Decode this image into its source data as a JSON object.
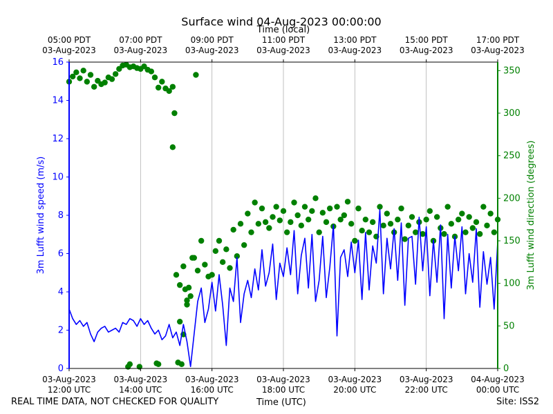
{
  "title": "Surface wind 04-Aug-2023 00:00:00",
  "footer": {
    "left": "REAL TIME DATA, NOT CHECKED FOR QUALITY",
    "center": "Time (UTC)",
    "right": "Site: ISS2"
  },
  "colors": {
    "speed": "#0000ff",
    "direction": "#008000",
    "grid": "#b0b0b0",
    "axis": "#000000"
  },
  "chart_data": {
    "type": "line",
    "title": "Surface wind 04-Aug-2023 00:00:00",
    "x_range_utc_hours": [
      12,
      24
    ],
    "bottom_axis": {
      "label": "Time (UTC)",
      "ticks": [
        {
          "hour": 12,
          "l1": "03-Aug-2023",
          "l2": "12:00 UTC"
        },
        {
          "hour": 14,
          "l1": "03-Aug-2023",
          "l2": "14:00 UTC"
        },
        {
          "hour": 16,
          "l1": "03-Aug-2023",
          "l2": "16:00 UTC"
        },
        {
          "hour": 18,
          "l1": "03-Aug-2023",
          "l2": "18:00 UTC"
        },
        {
          "hour": 20,
          "l1": "03-Aug-2023",
          "l2": "20:00 UTC"
        },
        {
          "hour": 22,
          "l1": "03-Aug-2023",
          "l2": "22:00 UTC"
        },
        {
          "hour": 24,
          "l1": "04-Aug-2023",
          "l2": "00:00 UTC"
        }
      ]
    },
    "top_axis": {
      "label": "Time (local)",
      "ticks": [
        {
          "hour": 12,
          "l1": "05:00 PDT",
          "l2": "03-Aug-2023"
        },
        {
          "hour": 14,
          "l1": "07:00 PDT",
          "l2": "03-Aug-2023"
        },
        {
          "hour": 16,
          "l1": "09:00 PDT",
          "l2": "03-Aug-2023"
        },
        {
          "hour": 18,
          "l1": "11:00 PDT",
          "l2": "03-Aug-2023"
        },
        {
          "hour": 20,
          "l1": "13:00 PDT",
          "l2": "03-Aug-2023"
        },
        {
          "hour": 22,
          "l1": "15:00 PDT",
          "l2": "03-Aug-2023"
        },
        {
          "hour": 24,
          "l1": "17:00 PDT",
          "l2": "03-Aug-2023"
        }
      ]
    },
    "left_axis": {
      "label": "3m Lufft wind speed (m/s)",
      "ylim": [
        0,
        16
      ],
      "ticks": [
        0,
        2,
        4,
        6,
        8,
        10,
        12,
        14,
        16
      ]
    },
    "right_axis": {
      "label": "3m Lufft wind direction (degrees)",
      "ylim": [
        0,
        360
      ],
      "ticks": [
        0,
        50,
        100,
        150,
        200,
        250,
        300,
        350
      ]
    },
    "series": [
      {
        "name": "3m Lufft wind speed (m/s)",
        "axis": "left",
        "style": "line",
        "x_hours": [
          12.0,
          12.1,
          12.2,
          12.3,
          12.4,
          12.5,
          12.6,
          12.7,
          12.8,
          12.9,
          13.0,
          13.1,
          13.2,
          13.3,
          13.4,
          13.5,
          13.6,
          13.7,
          13.8,
          13.9,
          14.0,
          14.1,
          14.2,
          14.3,
          14.4,
          14.5,
          14.6,
          14.7,
          14.8,
          14.9,
          15.0,
          15.1,
          15.2,
          15.3,
          15.4,
          15.5,
          15.6,
          15.7,
          15.8,
          15.9,
          16.0,
          16.1,
          16.2,
          16.3,
          16.4,
          16.5,
          16.6,
          16.7,
          16.8,
          16.9,
          17.0,
          17.1,
          17.2,
          17.3,
          17.4,
          17.5,
          17.6,
          17.7,
          17.8,
          17.9,
          18.0,
          18.1,
          18.2,
          18.3,
          18.4,
          18.5,
          18.6,
          18.7,
          18.8,
          18.9,
          19.0,
          19.1,
          19.2,
          19.3,
          19.4,
          19.5,
          19.6,
          19.7,
          19.8,
          19.9,
          20.0,
          20.1,
          20.2,
          20.3,
          20.4,
          20.5,
          20.6,
          20.7,
          20.8,
          20.9,
          21.0,
          21.1,
          21.2,
          21.3,
          21.4,
          21.5,
          21.6,
          21.7,
          21.8,
          21.9,
          22.0,
          22.1,
          22.2,
          22.3,
          22.4,
          22.5,
          22.6,
          22.7,
          22.8,
          22.9,
          23.0,
          23.1,
          23.2,
          23.3,
          23.4,
          23.5,
          23.6,
          23.7,
          23.8,
          23.9,
          24.0
        ],
        "values": [
          3.1,
          2.6,
          2.3,
          2.5,
          2.2,
          2.4,
          1.8,
          1.4,
          1.9,
          2.1,
          2.2,
          1.9,
          2.0,
          2.1,
          1.9,
          2.4,
          2.3,
          2.6,
          2.5,
          2.2,
          2.6,
          2.3,
          2.5,
          2.1,
          1.8,
          2.0,
          1.5,
          1.7,
          2.3,
          1.6,
          1.9,
          1.2,
          2.3,
          1.4,
          0.1,
          1.8,
          3.5,
          4.2,
          2.4,
          3.1,
          4.5,
          3.0,
          4.9,
          3.3,
          1.2,
          4.2,
          3.5,
          5.8,
          2.4,
          3.9,
          4.6,
          3.7,
          5.2,
          4.1,
          6.2,
          4.3,
          5.0,
          6.5,
          3.6,
          5.5,
          4.8,
          6.3,
          4.9,
          7.2,
          3.9,
          5.9,
          6.8,
          4.2,
          7.0,
          3.5,
          4.6,
          6.9,
          3.7,
          5.3,
          7.5,
          1.7,
          5.8,
          6.2,
          4.8,
          6.6,
          5.0,
          6.7,
          3.6,
          7.1,
          4.1,
          6.4,
          5.5,
          8.3,
          3.9,
          6.8,
          5.2,
          7.3,
          4.6,
          7.6,
          3.3,
          6.8,
          6.9,
          4.4,
          7.9,
          5.1,
          7.4,
          3.8,
          6.7,
          4.5,
          7.5,
          2.6,
          7.0,
          4.2,
          6.9,
          5.1,
          7.4,
          3.9,
          6.0,
          4.5,
          7.3,
          3.2,
          6.1,
          4.4,
          5.8,
          3.1,
          6.6
        ]
      },
      {
        "name": "3m Lufft wind direction (degrees)",
        "axis": "right",
        "style": "scatter",
        "x_hours": [
          12.0,
          12.1,
          12.2,
          12.3,
          12.4,
          12.5,
          12.6,
          12.7,
          12.8,
          12.9,
          13.0,
          13.1,
          13.2,
          13.3,
          13.4,
          13.5,
          13.6,
          13.7,
          13.8,
          13.9,
          14.0,
          14.1,
          14.2,
          14.3,
          14.4,
          14.5,
          14.6,
          14.7,
          14.8,
          14.9,
          15.0,
          15.1,
          15.2,
          15.3,
          15.4,
          15.5,
          15.6,
          15.7,
          15.8,
          15.9,
          16.0,
          16.1,
          16.2,
          16.3,
          16.4,
          16.5,
          16.6,
          16.7,
          16.8,
          16.9,
          17.0,
          17.1,
          17.2,
          17.3,
          17.4,
          17.5,
          17.6,
          17.7,
          17.8,
          17.9,
          18.0,
          18.1,
          18.2,
          18.3,
          18.4,
          18.5,
          18.6,
          18.7,
          18.8,
          18.9,
          19.0,
          19.1,
          19.2,
          19.3,
          19.4,
          19.5,
          19.6,
          19.7,
          19.8,
          19.9,
          20.0,
          20.1,
          20.2,
          20.3,
          20.4,
          20.5,
          20.6,
          20.7,
          20.8,
          20.9,
          21.0,
          21.1,
          21.2,
          21.3,
          21.4,
          21.5,
          21.6,
          21.7,
          21.8,
          21.9,
          22.0,
          22.1,
          22.2,
          22.3,
          22.4,
          22.5,
          22.6,
          22.7,
          22.8,
          22.9,
          23.0,
          23.1,
          23.2,
          23.3,
          23.4,
          23.5,
          23.6,
          23.7,
          23.8,
          23.9,
          24.0,
          13.65,
          13.7,
          13.97,
          14.45,
          14.5,
          14.9,
          14.95,
          15.05,
          15.1,
          15.2,
          15.15,
          15.25,
          15.3,
          15.55,
          15.35,
          15.45
        ],
        "values": [
          337,
          343,
          348,
          341,
          350,
          337,
          345,
          331,
          338,
          334,
          336,
          342,
          340,
          346,
          352,
          356,
          357,
          354,
          355,
          353,
          352,
          355,
          351,
          349,
          342,
          330,
          337,
          329,
          326,
          331,
          110,
          98,
          120,
          75,
          85,
          130,
          115,
          150,
          122,
          108,
          110,
          138,
          150,
          125,
          140,
          118,
          163,
          132,
          170,
          145,
          182,
          160,
          195,
          170,
          188,
          172,
          165,
          178,
          190,
          174,
          185,
          160,
          172,
          195,
          180,
          168,
          190,
          175,
          185,
          200,
          160,
          183,
          172,
          188,
          167,
          190,
          175,
          180,
          196,
          170,
          150,
          188,
          162,
          175,
          160,
          172,
          155,
          190,
          168,
          182,
          170,
          160,
          175,
          188,
          152,
          168,
          178,
          160,
          172,
          158,
          175,
          185,
          150,
          178,
          165,
          158,
          190,
          170,
          155,
          175,
          182,
          160,
          178,
          165,
          172,
          158,
          190,
          168,
          182,
          160,
          175,
          2,
          5,
          2,
          6,
          5,
          260,
          300,
          7,
          55,
          40,
          5,
          93,
          80,
          345,
          95,
          130
        ]
      }
    ]
  }
}
